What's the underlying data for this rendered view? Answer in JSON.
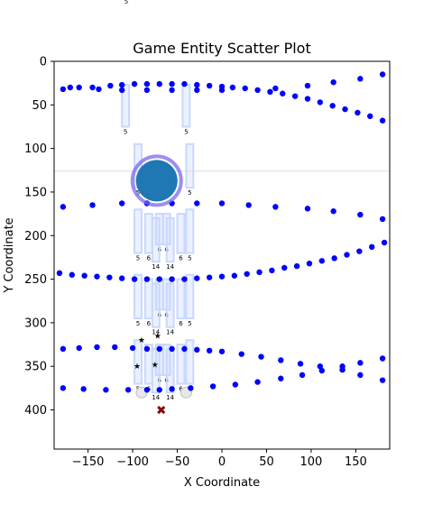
{
  "chart_data": {
    "type": "scatter",
    "title": "Game Entity Scatter Plot",
    "xlabel": "X Coordinate",
    "ylabel": "Y Coordinate",
    "xlim": [
      -188,
      188
    ],
    "ylim": [
      445,
      0
    ],
    "y_inverted": true,
    "grid": false,
    "xticks": [
      -150,
      -100,
      -50,
      0,
      50,
      100,
      150
    ],
    "yticks": [
      0,
      50,
      100,
      150,
      200,
      250,
      300,
      350,
      400
    ],
    "colors": {
      "dots": "#0000ff",
      "player": "#1f77b4",
      "player_ring": "#7b68ee",
      "green_star": "#008000",
      "enemy_marker": "#8b0000",
      "hitbox": "#c8d8ff",
      "hitline": "#dddddd"
    },
    "stray_label": "5",
    "horizontal_line_y": 126,
    "player": {
      "x": -73,
      "y": 137,
      "label": ""
    },
    "enemy_marker": {
      "x": -68,
      "y": 400
    },
    "green_stars": [
      {
        "x": -90,
        "y": 320
      },
      {
        "x": -72,
        "y": 315
      },
      {
        "x": -95,
        "y": 350
      },
      {
        "x": -75,
        "y": 348
      }
    ],
    "grey_circles": [
      {
        "x": -90,
        "y": 380
      },
      {
        "x": -40,
        "y": 380
      }
    ],
    "dot_rows": [
      {
        "name": "row1",
        "points": [
          [
            -178,
            32
          ],
          [
            -170,
            30
          ],
          [
            -160,
            30
          ],
          [
            -145,
            30
          ],
          [
            -138,
            32
          ],
          [
            -125,
            28
          ],
          [
            -112,
            27
          ],
          [
            -98,
            26
          ],
          [
            -84,
            26
          ],
          [
            -70,
            26
          ],
          [
            -56,
            26
          ],
          [
            -42,
            26
          ],
          [
            -28,
            27
          ],
          [
            -14,
            28
          ],
          [
            0,
            29
          ],
          [
            12,
            30
          ],
          [
            26,
            31
          ],
          [
            40,
            33
          ],
          [
            54,
            35
          ],
          [
            68,
            37
          ],
          [
            82,
            40
          ],
          [
            96,
            43
          ],
          [
            110,
            47
          ],
          [
            124,
            51
          ],
          [
            138,
            55
          ],
          [
            152,
            59
          ],
          [
            166,
            63
          ],
          [
            180,
            68
          ]
        ]
      },
      {
        "name": "row1b",
        "points": [
          [
            -112,
            33
          ],
          [
            -84,
            33
          ],
          [
            -56,
            33
          ],
          [
            -28,
            33
          ],
          [
            0,
            33
          ],
          [
            60,
            31
          ],
          [
            96,
            28
          ],
          [
            125,
            24
          ],
          [
            155,
            20
          ],
          [
            180,
            15
          ]
        ]
      },
      {
        "name": "row2",
        "points": [
          [
            -178,
            167
          ],
          [
            -145,
            165
          ],
          [
            -112,
            163
          ],
          [
            -84,
            163
          ],
          [
            -56,
            163
          ],
          [
            -28,
            163
          ],
          [
            0,
            163
          ],
          [
            30,
            165
          ],
          [
            60,
            167
          ],
          [
            96,
            169
          ],
          [
            125,
            172
          ],
          [
            155,
            176
          ],
          [
            180,
            181
          ]
        ]
      },
      {
        "name": "row3",
        "points": [
          [
            -182,
            243
          ],
          [
            -168,
            245
          ],
          [
            -154,
            246
          ],
          [
            -140,
            247
          ],
          [
            -126,
            248
          ],
          [
            -112,
            249
          ],
          [
            -98,
            250
          ],
          [
            -84,
            250
          ],
          [
            -70,
            250
          ],
          [
            -56,
            250
          ],
          [
            -42,
            250
          ],
          [
            -28,
            249
          ],
          [
            -14,
            248
          ],
          [
            0,
            247
          ],
          [
            14,
            246
          ],
          [
            28,
            244
          ],
          [
            42,
            242
          ],
          [
            56,
            240
          ],
          [
            70,
            237
          ],
          [
            84,
            235
          ],
          [
            98,
            232
          ],
          [
            112,
            229
          ],
          [
            126,
            226
          ],
          [
            140,
            222
          ],
          [
            154,
            218
          ],
          [
            168,
            213
          ],
          [
            182,
            208
          ]
        ]
      },
      {
        "name": "row4",
        "points": [
          [
            -178,
            330
          ],
          [
            -160,
            329
          ],
          [
            -140,
            328
          ],
          [
            -120,
            328
          ],
          [
            -100,
            329
          ],
          [
            -84,
            330
          ],
          [
            -70,
            330
          ],
          [
            -56,
            330
          ],
          [
            -42,
            330
          ],
          [
            -28,
            331
          ],
          [
            -14,
            332
          ],
          [
            0,
            333
          ],
          [
            22,
            336
          ],
          [
            44,
            339
          ],
          [
            66,
            343
          ],
          [
            88,
            347
          ],
          [
            110,
            350
          ],
          [
            135,
            350
          ],
          [
            155,
            346
          ],
          [
            180,
            341
          ]
        ]
      },
      {
        "name": "row5",
        "points": [
          [
            -178,
            375
          ],
          [
            -155,
            376
          ],
          [
            -130,
            377
          ],
          [
            -105,
            377
          ],
          [
            -84,
            377
          ],
          [
            -70,
            377
          ],
          [
            -56,
            376
          ],
          [
            -35,
            375
          ],
          [
            -10,
            373
          ],
          [
            15,
            371
          ],
          [
            40,
            368
          ],
          [
            66,
            364
          ],
          [
            90,
            360
          ],
          [
            112,
            355
          ],
          [
            135,
            354
          ],
          [
            155,
            360
          ],
          [
            180,
            366
          ]
        ]
      }
    ],
    "hitboxes": [
      {
        "x1": -112,
        "x2": -104,
        "y1": 27,
        "y2": 75,
        "label": "5"
      },
      {
        "x1": -44,
        "x2": -36,
        "y1": 27,
        "y2": 75,
        "label": "5"
      },
      {
        "x1": -98,
        "x2": -90,
        "y1": 95,
        "y2": 145,
        "label": "5"
      },
      {
        "x1": -40,
        "x2": -32,
        "y1": 95,
        "y2": 145,
        "label": "5"
      },
      {
        "x1": -98,
        "x2": -90,
        "y1": 170,
        "y2": 220,
        "label": "5"
      },
      {
        "x1": -86,
        "x2": -78,
        "y1": 175,
        "y2": 220,
        "label": "6"
      },
      {
        "x1": -74,
        "x2": -66,
        "y1": 175,
        "y2": 210,
        "label": "6"
      },
      {
        "x1": -66,
        "x2": -58,
        "y1": 175,
        "y2": 210,
        "label": "6"
      },
      {
        "x1": -50,
        "x2": -42,
        "y1": 175,
        "y2": 220,
        "label": "6"
      },
      {
        "x1": -40,
        "x2": -32,
        "y1": 170,
        "y2": 220,
        "label": "5"
      },
      {
        "x1": -78,
        "x2": -70,
        "y1": 180,
        "y2": 230,
        "label": "14"
      },
      {
        "x1": -62,
        "x2": -54,
        "y1": 180,
        "y2": 230,
        "label": "14"
      },
      {
        "x1": -98,
        "x2": -90,
        "y1": 245,
        "y2": 295,
        "label": "5"
      },
      {
        "x1": -86,
        "x2": -78,
        "y1": 250,
        "y2": 295,
        "label": "6"
      },
      {
        "x1": -74,
        "x2": -66,
        "y1": 250,
        "y2": 285,
        "label": "6"
      },
      {
        "x1": -66,
        "x2": -58,
        "y1": 250,
        "y2": 285,
        "label": "6"
      },
      {
        "x1": -50,
        "x2": -42,
        "y1": 250,
        "y2": 295,
        "label": "6"
      },
      {
        "x1": -40,
        "x2": -32,
        "y1": 245,
        "y2": 295,
        "label": "5"
      },
      {
        "x1": -78,
        "x2": -70,
        "y1": 255,
        "y2": 305,
        "label": "14"
      },
      {
        "x1": -62,
        "x2": -54,
        "y1": 255,
        "y2": 305,
        "label": "14"
      },
      {
        "x1": -98,
        "x2": -90,
        "y1": 320,
        "y2": 370,
        "label": "5"
      },
      {
        "x1": -86,
        "x2": -78,
        "y1": 325,
        "y2": 370,
        "label": "6"
      },
      {
        "x1": -74,
        "x2": -66,
        "y1": 325,
        "y2": 360,
        "label": "6"
      },
      {
        "x1": -66,
        "x2": -58,
        "y1": 325,
        "y2": 360,
        "label": "6"
      },
      {
        "x1": -50,
        "x2": -42,
        "y1": 325,
        "y2": 370,
        "label": "6"
      },
      {
        "x1": -40,
        "x2": -32,
        "y1": 320,
        "y2": 370,
        "label": "5"
      },
      {
        "x1": -78,
        "x2": -70,
        "y1": 330,
        "y2": 380,
        "label": "14"
      },
      {
        "x1": -62,
        "x2": -54,
        "y1": 330,
        "y2": 380,
        "label": "14"
      }
    ]
  }
}
